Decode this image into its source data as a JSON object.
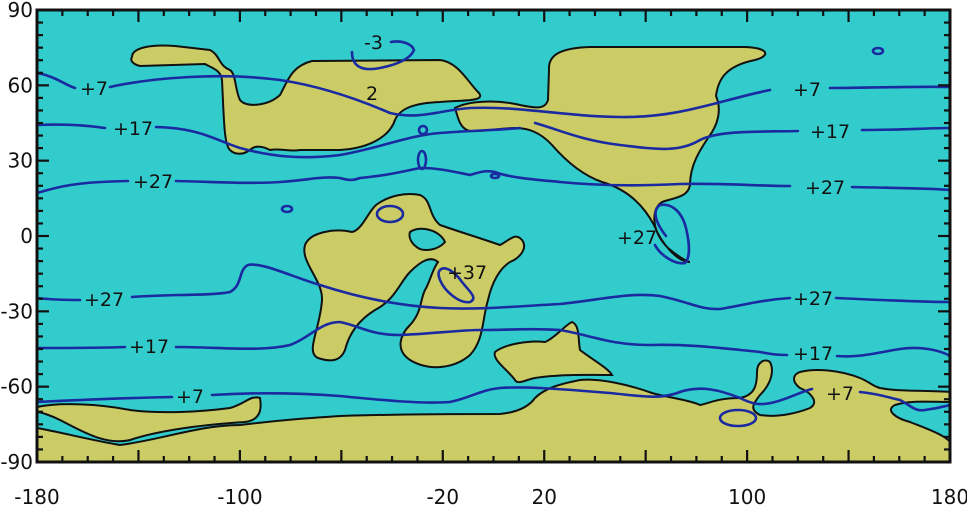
{
  "chart_data": {
    "type": "contour-map",
    "xlim": [
      -180,
      180
    ],
    "ylim": [
      -90,
      90
    ],
    "x_tick_labels": [
      "-180",
      "-100",
      "-20",
      "20",
      "100",
      "180"
    ],
    "x_tick_values": [
      -180,
      -100,
      -20,
      20,
      100,
      180
    ],
    "y_tick_labels": [
      "90",
      "60",
      "30",
      "0",
      "-30",
      "-60",
      "-90"
    ],
    "y_tick_values": [
      90,
      60,
      30,
      0,
      -30,
      -60,
      -90
    ],
    "x_major_step": 40,
    "x_minor_step": 10,
    "y_major_step": 30,
    "y_minor_step": 5,
    "contour_labels": {
      "n7_left": "+7",
      "n7_right": "+7",
      "n17_left": "+17",
      "n17_right": "+17",
      "n27_left": "+27",
      "n27_right": "+27",
      "minus3": "-3",
      "two": "2",
      "eq27": "+27",
      "p37": "+37",
      "s27_left": "+27",
      "s27_right": "+27",
      "s17_left": "+17",
      "s17_right": "+17",
      "s7_left": "+7",
      "s7_right": "+7"
    },
    "colors": {
      "ocean": "#33cccc",
      "land": "#cccc66",
      "isotherm": "#1a2aa0",
      "coastline": "#111111"
    }
  }
}
